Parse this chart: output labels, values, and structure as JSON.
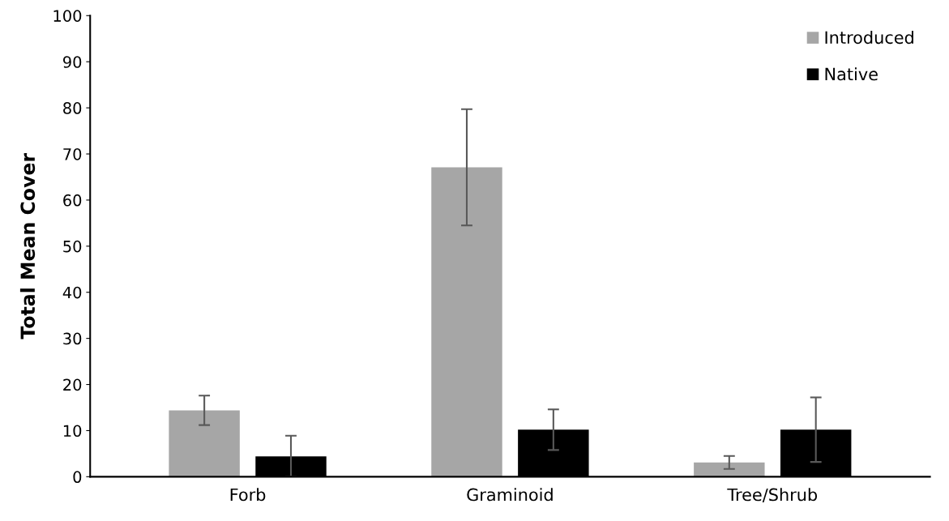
{
  "chart_data": {
    "type": "bar",
    "ylabel": "Total Mean Cover",
    "categories": [
      "Forb",
      "Graminoid",
      "Tree/Shrub"
    ],
    "series": [
      {
        "name": "Introduced",
        "color": "#a6a6a6",
        "values": [
          14.4,
          67.1,
          3.1
        ],
        "errors": [
          3.2,
          12.6,
          1.4
        ]
      },
      {
        "name": "Native",
        "color": "#000000",
        "values": [
          4.4,
          10.2,
          10.2
        ],
        "errors": [
          [
            4.4,
            4.5
          ],
          4.4,
          7.0
        ]
      }
    ],
    "ylim": [
      0,
      100
    ],
    "yticks": [
      0,
      10,
      20,
      30,
      40,
      50,
      60,
      70,
      80,
      90,
      100
    ],
    "grid": false,
    "legend": "top right"
  }
}
